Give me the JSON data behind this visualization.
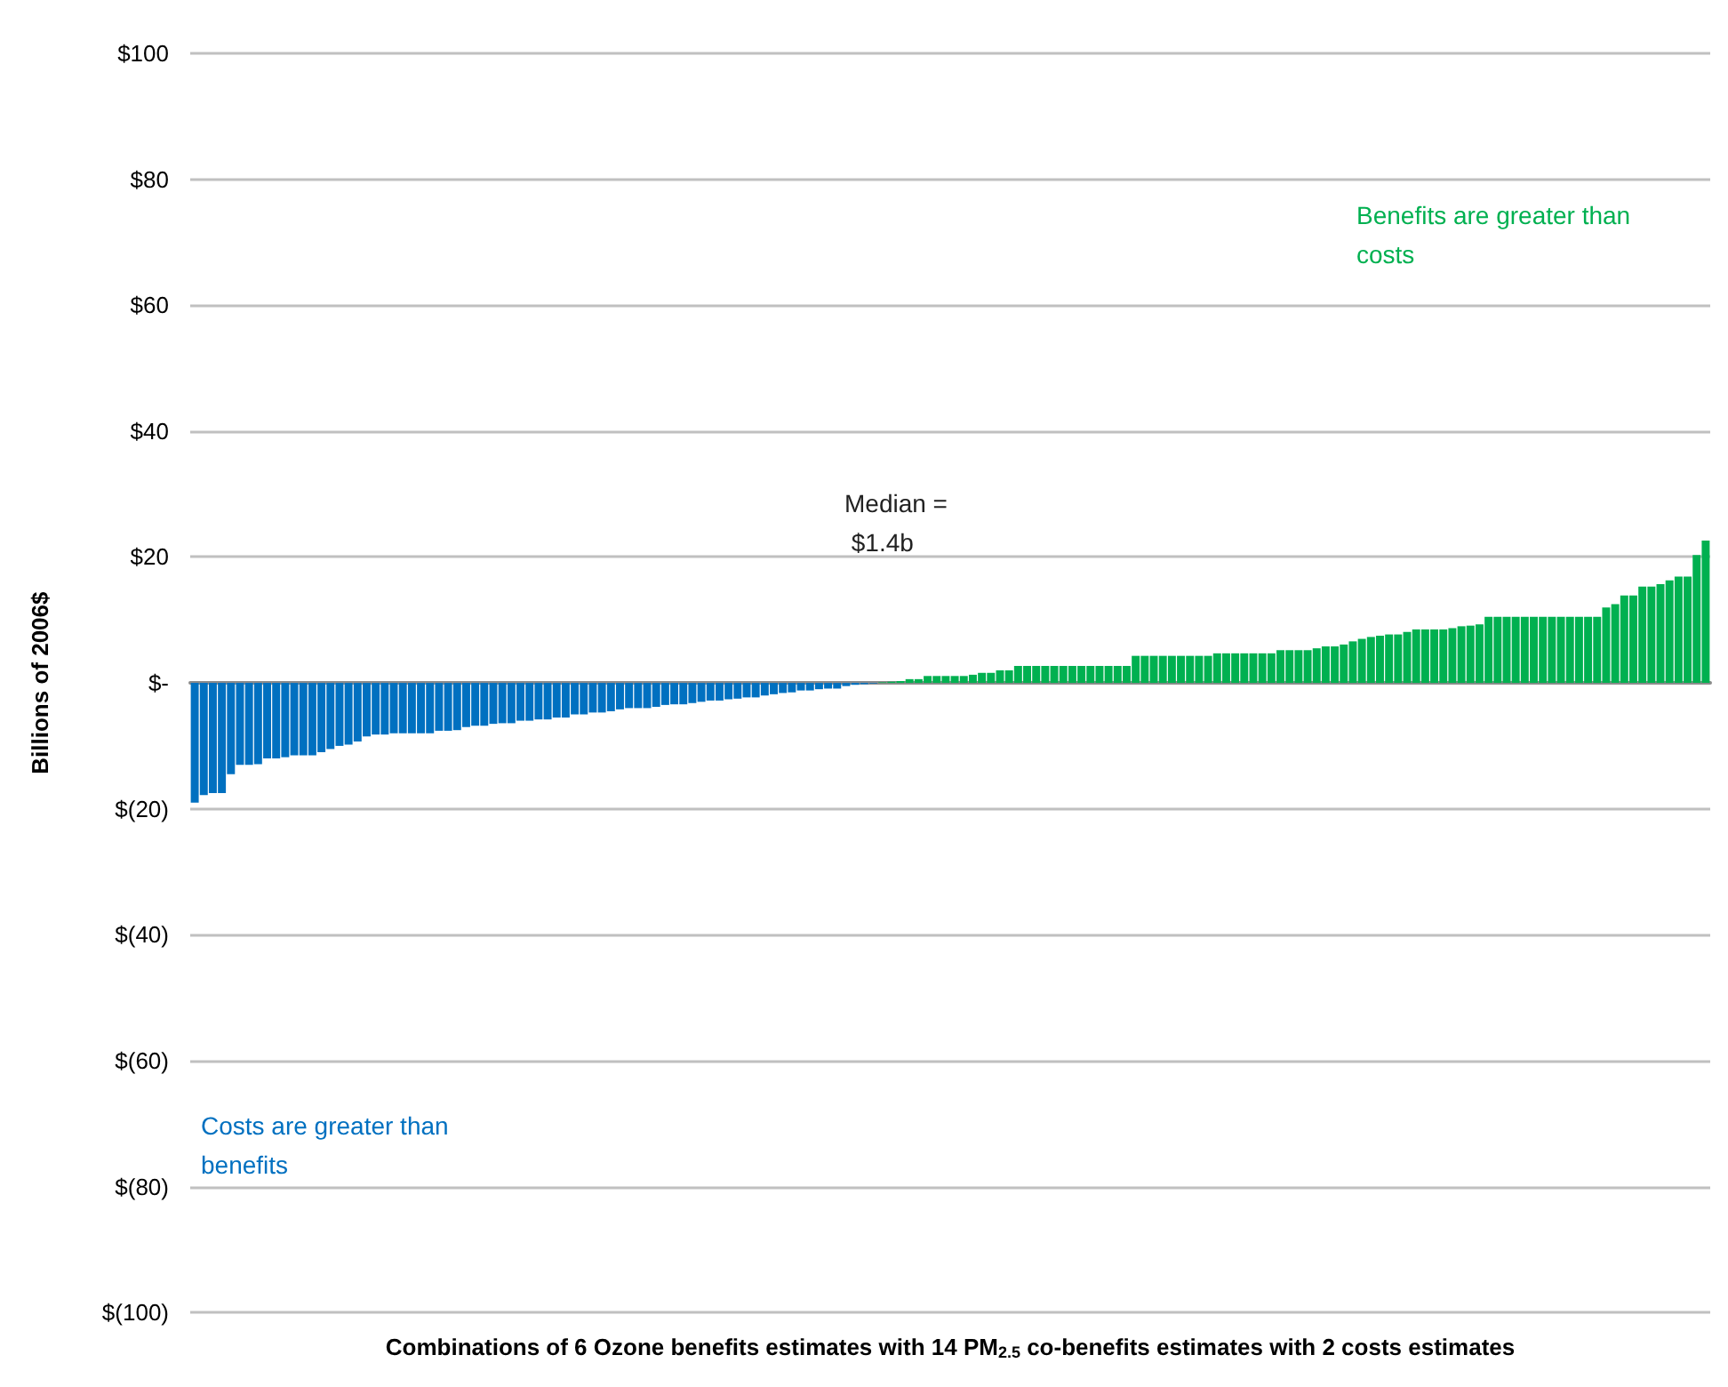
{
  "chart_data": {
    "type": "bar",
    "stacked": true,
    "xlabel": "Combinations of 6 Ozone benefits estimates with 14 PM$_{2.5}$ co-benefits estimates with 2 costs estimates",
    "ylabel": "Billions of 2006$",
    "categories": [
      null,
      null,
      null,
      null,
      null,
      null,
      null,
      null,
      null,
      null,
      null,
      null,
      null,
      null,
      null,
      null,
      null,
      null,
      null,
      null,
      null,
      null,
      null,
      null,
      null,
      null,
      null,
      null,
      null,
      null,
      null,
      null,
      null,
      null,
      null,
      null,
      null,
      null,
      null,
      null,
      null,
      null,
      null,
      null,
      null,
      null,
      null,
      null,
      null,
      null,
      null,
      null,
      null,
      null,
      null,
      null,
      null,
      null,
      null,
      null,
      null,
      null,
      null,
      null,
      null,
      null,
      null,
      null,
      null,
      null,
      null,
      null,
      null,
      null,
      null,
      null,
      null,
      null,
      null,
      null,
      null,
      null,
      null,
      null,
      null,
      null,
      null,
      null,
      null,
      null,
      null,
      null,
      null,
      null,
      null,
      null,
      null,
      null,
      null,
      null,
      null,
      null,
      null,
      null,
      null,
      null,
      null,
      null,
      null,
      null,
      null,
      null,
      null,
      null,
      null,
      null,
      null,
      null,
      null,
      null,
      null,
      null,
      null,
      null,
      null,
      null,
      null,
      null,
      null,
      null,
      null,
      null,
      null,
      null,
      null,
      null,
      null,
      null,
      null,
      null,
      null,
      null,
      null,
      null,
      null,
      null,
      null,
      null,
      null,
      null,
      null,
      null,
      null,
      null,
      null,
      null,
      null,
      null,
      null,
      null,
      null,
      null,
      null,
      null,
      null,
      null,
      null,
      null
    ],
    "series": [
      {
        "color": "#0070c0",
        "values": [
          -19,
          -17.8,
          -17.5,
          -17.5,
          -14.5,
          -13,
          -13,
          -12.9,
          -12,
          -12,
          -11.8,
          -11.5,
          -11.5,
          -11.5,
          -11,
          -10.5,
          -10,
          -9.8,
          -9.3,
          -8.5,
          -8.2,
          -8.2,
          -8,
          -8,
          -8,
          -8,
          -8,
          -7.6,
          -7.6,
          -7.5,
          -7,
          -6.8,
          -6.8,
          -6.5,
          -6.4,
          -6.4,
          -6,
          -6,
          -5.8,
          -5.8,
          -5.5,
          -5.5,
          -5,
          -5,
          -4.7,
          -4.7,
          -4.5,
          -4.2,
          -4,
          -4,
          -4,
          -3.8,
          -3.5,
          -3.4,
          -3.4,
          -3.2,
          -3,
          -2.8,
          -2.8,
          -2.6,
          -2.5,
          -2.3,
          -2.3,
          -2,
          -1.8,
          -1.6,
          -1.5,
          -1.2,
          -1.2,
          -1,
          -0.9,
          -0.9,
          -0.5,
          -0.3,
          -0.2,
          -0.1,
          null,
          null,
          null,
          null,
          null,
          null,
          null,
          null,
          null,
          null,
          null,
          null,
          null,
          null,
          null,
          null,
          null,
          null,
          null,
          null,
          null,
          null,
          null,
          null,
          null,
          null,
          null,
          null,
          null,
          null,
          null,
          null,
          null,
          null,
          null,
          null,
          null,
          null,
          null,
          null,
          null,
          null,
          null,
          null,
          null,
          null,
          null,
          null,
          null,
          null,
          null,
          null,
          null,
          null,
          null,
          null,
          null,
          null,
          null,
          null,
          null,
          null,
          null,
          null,
          null,
          null,
          null,
          null,
          null,
          null,
          null,
          null,
          null,
          null,
          null,
          null,
          null,
          null,
          null,
          null,
          null,
          null,
          null,
          null,
          null,
          null,
          null,
          null,
          null,
          null,
          null,
          null
        ]
      },
      {
        "color": "#00b050",
        "values": [
          null,
          null,
          null,
          null,
          null,
          null,
          null,
          null,
          null,
          null,
          null,
          null,
          null,
          null,
          null,
          null,
          null,
          null,
          null,
          null,
          null,
          null,
          null,
          null,
          null,
          null,
          null,
          null,
          null,
          null,
          null,
          null,
          null,
          null,
          null,
          null,
          null,
          null,
          null,
          null,
          null,
          null,
          null,
          null,
          null,
          null,
          null,
          null,
          null,
          null,
          null,
          null,
          null,
          null,
          null,
          null,
          null,
          null,
          null,
          null,
          null,
          null,
          null,
          null,
          null,
          null,
          null,
          null,
          null,
          null,
          null,
          null,
          null,
          null,
          null,
          null,
          0.1,
          0.2,
          0.3,
          0.6,
          0.6,
          1.1,
          1.1,
          1.1,
          1.1,
          1.1,
          1.3,
          1.6,
          1.6,
          2.0,
          2.0,
          2.7,
          2.7,
          2.7,
          2.7,
          2.7,
          2.7,
          2.7,
          2.7,
          2.7,
          2.7,
          2.7,
          2.7,
          2.7,
          4.3,
          4.3,
          4.3,
          4.3,
          4.3,
          4.3,
          4.3,
          4.3,
          4.3,
          4.7,
          4.7,
          4.7,
          4.7,
          4.7,
          4.7,
          4.7,
          5.2,
          5.2,
          5.2,
          5.2,
          5.5,
          5.8,
          5.8,
          6.1,
          6.6,
          7.0,
          7.3,
          7.5,
          7.7,
          7.7,
          8.1,
          8.5,
          8.5,
          8.5,
          8.5,
          8.7,
          9.0,
          9.1,
          9.3,
          10.5,
          10.5,
          10.5,
          10.5,
          10.5,
          10.5,
          10.5,
          10.5,
          10.5,
          10.5,
          10.5,
          10.5,
          10.5,
          12.0,
          12.5,
          13.9,
          13.9,
          15.3,
          15.3,
          15.7,
          16.3,
          16.9,
          16.9,
          20.3,
          22.6
        ]
      }
    ],
    "ylim": [
      -100,
      100
    ],
    "yticks": [
      {
        "value": -100,
        "label": "$(100)"
      },
      {
        "value": -80,
        "label": "$(80)"
      },
      {
        "value": -60,
        "label": "$(60)"
      },
      {
        "value": -40,
        "label": "$(40)"
      },
      {
        "value": -20,
        "label": "$(20)"
      },
      {
        "value": 0,
        "label": "$-"
      },
      {
        "value": 20,
        "label": "$20"
      },
      {
        "value": 40,
        "label": "$40"
      },
      {
        "value": 60,
        "label": "$60"
      },
      {
        "value": 80,
        "label": "$80"
      },
      {
        "value": 100,
        "label": "$100"
      }
    ],
    "grid": "y",
    "annotations": [
      "Costs are greater than benefits",
      "Median = $1.4b",
      "Benefits are greater than costs"
    ]
  }
}
